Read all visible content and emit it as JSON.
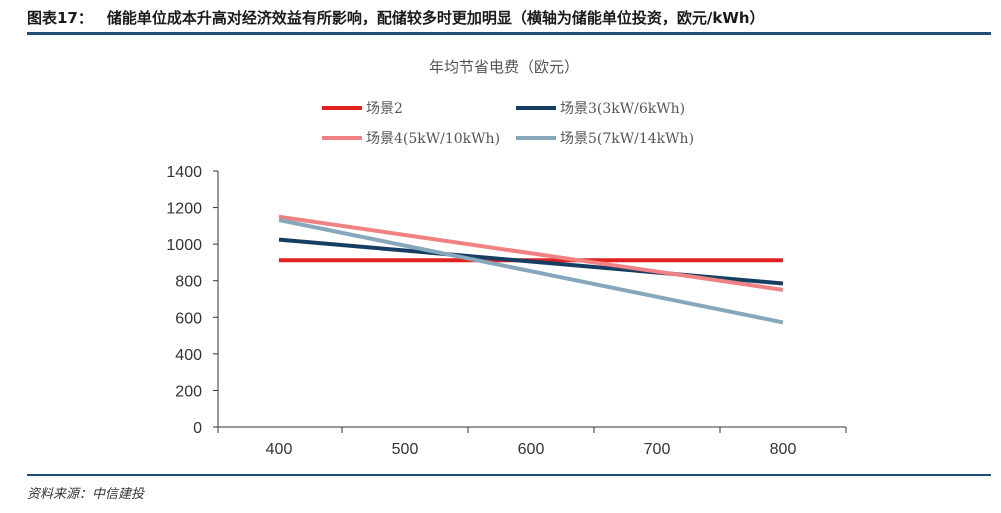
{
  "header": {
    "figure_number": "图表17：",
    "caption": "储能单位成本升高对经济效益有所影响，配储较多时更加明显（横轴为储能单位投资，欧元/kWh）"
  },
  "source": "资料来源：中信建投",
  "chart_data": {
    "type": "line",
    "title": "年均节省电费（欧元）",
    "xlabel": "",
    "ylabel": "",
    "x": [
      400,
      500,
      600,
      700,
      800
    ],
    "xlim": [
      400,
      800
    ],
    "ylim": [
      0,
      1400
    ],
    "x_ticks": [
      400,
      500,
      600,
      700,
      800
    ],
    "y_ticks": [
      0,
      200,
      400,
      600,
      800,
      1000,
      1200,
      1400
    ],
    "legend_position": "top",
    "grid": false,
    "series": [
      {
        "name": "场景2",
        "color": "#e0201e",
        "values": [
          912,
          912,
          912,
          912,
          912
        ]
      },
      {
        "name": "场景3(3kW/6kWh)",
        "color": "#163e63",
        "values": [
          1025,
          965,
          905,
          845,
          785
        ]
      },
      {
        "name": "场景4(5kW/10kWh)",
        "color": "#f08283",
        "values": [
          1150,
          1050,
          950,
          850,
          750
        ]
      },
      {
        "name": "场景5(7kW/14kWh)",
        "color": "#86a7bc",
        "values": [
          1132,
          992,
          852,
          712,
          572
        ]
      }
    ]
  }
}
